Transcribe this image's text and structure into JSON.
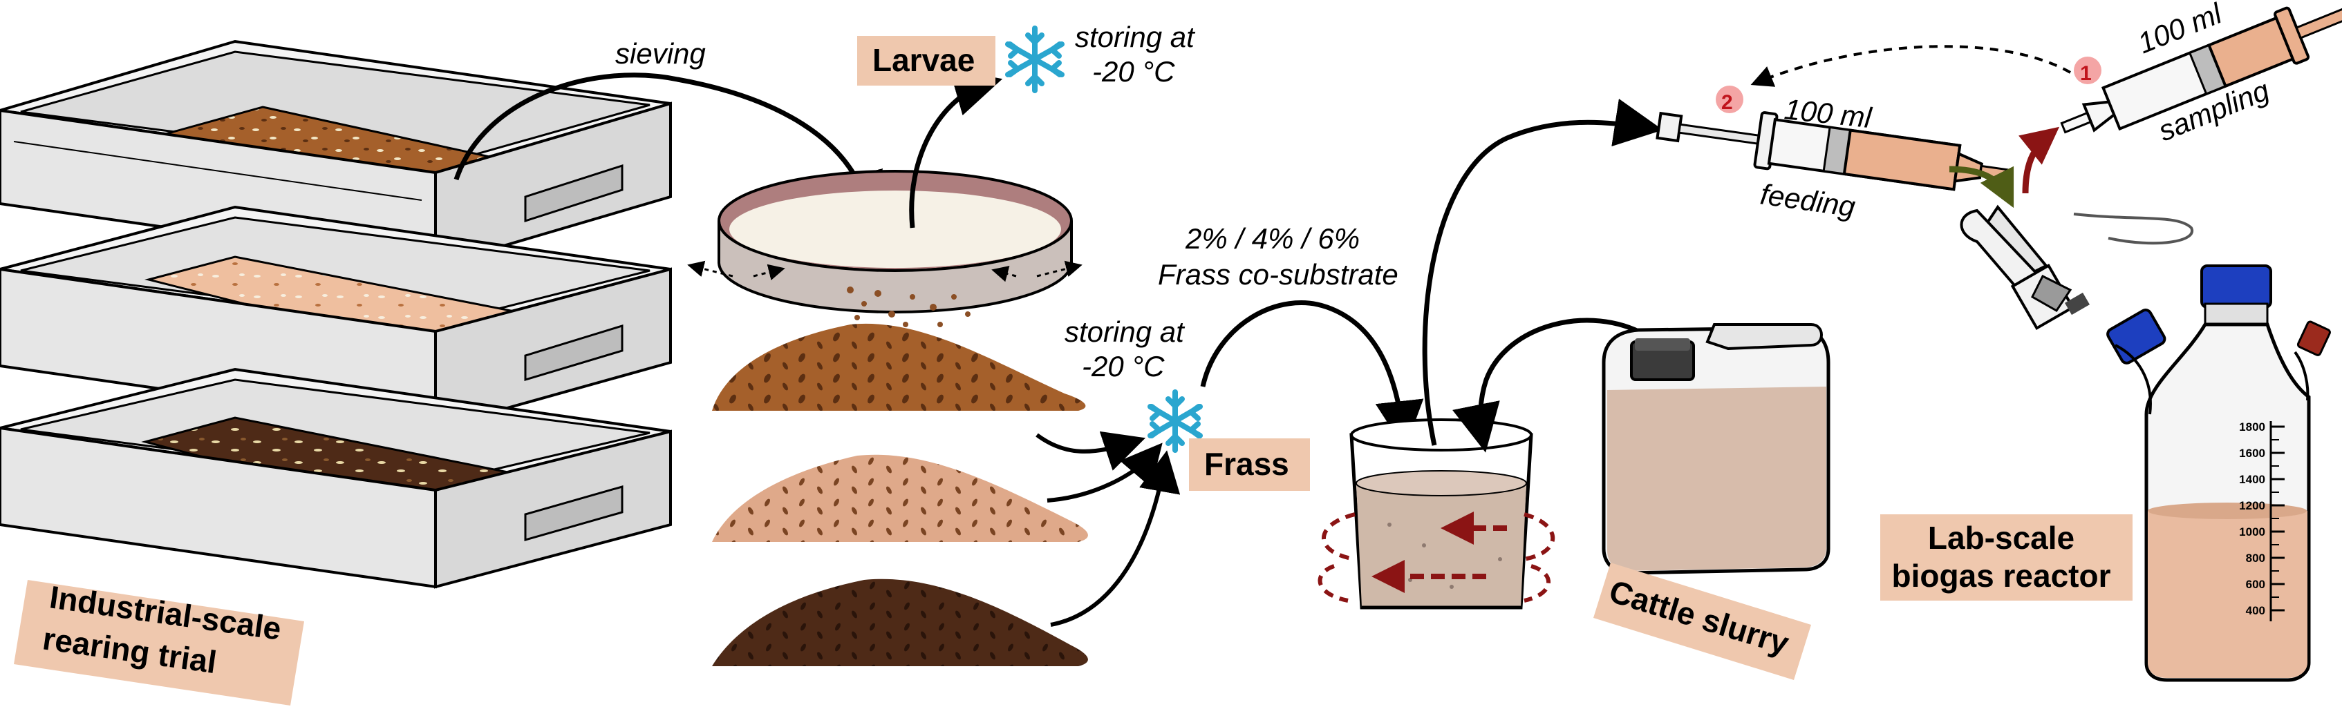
{
  "labels": {
    "sieving": "sieving",
    "larvae": "Larvae",
    "storing_top_l1": "storing at",
    "storing_top_l2": "-20 °C",
    "storing_mid_l1": "storing at",
    "storing_mid_l2": "-20 °C",
    "frass": "Frass",
    "percent_l1": "2% / 4% / 6%",
    "percent_l2": "Frass co-substrate",
    "industrial_l1": "Industrial-scale",
    "industrial_l2": "rearing trial",
    "cattle": "Cattle slurry",
    "reactor_l1": "Lab-scale",
    "reactor_l2": "biogas reactor",
    "feeding": "feeding",
    "sampling": "sampling",
    "syringe_vol_1": "100 ml",
    "syringe_vol_2": "100 ml",
    "step_1": "1",
    "step_2": "2"
  },
  "bottle_scale": [
    "1800",
    "1600",
    "1400",
    "1200",
    "1000",
    "800",
    "600",
    "400"
  ],
  "colors": {
    "label_bg": "#efc8ae",
    "snowflake": "#2aa6cf",
    "frass_brown": "#a5602b",
    "frass_light": "#dfa98a",
    "frass_dark": "#4e2a17",
    "slurry": "#cfae9a",
    "cap_blue": "#1d3fbf",
    "arrow_red": "#8b1414"
  }
}
